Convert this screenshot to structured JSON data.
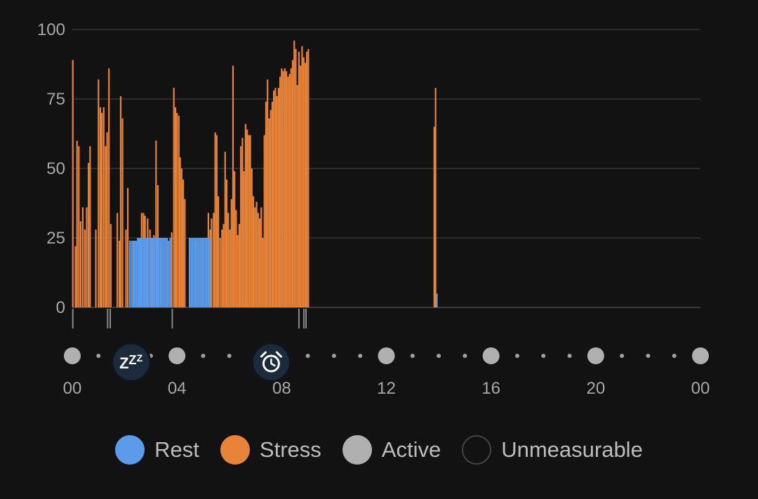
{
  "chart_data": {
    "type": "bar",
    "title": "",
    "xlabel": "",
    "ylabel": "",
    "ylim": [
      0,
      100
    ],
    "xlim_hours": [
      0,
      24
    ],
    "grid": true,
    "y_ticks": [
      "100",
      "75",
      "50",
      "25",
      "0"
    ],
    "x_ticks": [
      "00",
      "04",
      "08",
      "12",
      "16",
      "20",
      "00"
    ],
    "series": [
      {
        "name": "Stress",
        "color": "#E8833A",
        "bars": [
          [
            0.02,
            89
          ],
          [
            0.12,
            22
          ],
          [
            0.18,
            60
          ],
          [
            0.25,
            58
          ],
          [
            0.32,
            31
          ],
          [
            0.4,
            36
          ],
          [
            0.48,
            28
          ],
          [
            0.55,
            36
          ],
          [
            0.62,
            52
          ],
          [
            0.68,
            58
          ],
          [
            0.9,
            28
          ],
          [
            1.0,
            82
          ],
          [
            1.07,
            72
          ],
          [
            1.13,
            70
          ],
          [
            1.2,
            72
          ],
          [
            1.27,
            58
          ],
          [
            1.33,
            63
          ],
          [
            1.4,
            86
          ],
          [
            1.47,
            30
          ],
          [
            1.72,
            34
          ],
          [
            1.8,
            24
          ],
          [
            1.85,
            76
          ],
          [
            1.92,
            68
          ],
          [
            2.05,
            28
          ],
          [
            2.12,
            43
          ],
          [
            2.65,
            34
          ],
          [
            2.72,
            34
          ],
          [
            2.78,
            33
          ],
          [
            2.88,
            32
          ],
          [
            2.97,
            28
          ],
          [
            3.05,
            25
          ],
          [
            3.12,
            26
          ],
          [
            3.2,
            60
          ],
          [
            3.27,
            44
          ],
          [
            3.8,
            27
          ],
          [
            3.88,
            79
          ],
          [
            3.94,
            72
          ],
          [
            4.0,
            70
          ],
          [
            4.07,
            69
          ],
          [
            4.12,
            54
          ],
          [
            4.18,
            50
          ],
          [
            4.24,
            46
          ],
          [
            4.3,
            39
          ],
          [
            5.2,
            34
          ],
          [
            5.27,
            28
          ],
          [
            5.32,
            32
          ],
          [
            5.4,
            34
          ],
          [
            5.46,
            63
          ],
          [
            5.52,
            62
          ],
          [
            5.58,
            40
          ],
          [
            5.65,
            25
          ],
          [
            5.72,
            28
          ],
          [
            5.78,
            30
          ],
          [
            5.84,
            56
          ],
          [
            5.9,
            46
          ],
          [
            5.96,
            34
          ],
          [
            6.02,
            28
          ],
          [
            6.08,
            39
          ],
          [
            6.14,
            87
          ],
          [
            6.2,
            49
          ],
          [
            6.26,
            35
          ],
          [
            6.32,
            26
          ],
          [
            6.38,
            30
          ],
          [
            6.44,
            58
          ],
          [
            6.5,
            61
          ],
          [
            6.56,
            49
          ],
          [
            6.62,
            66
          ],
          [
            6.68,
            64
          ],
          [
            6.74,
            62
          ],
          [
            6.8,
            62
          ],
          [
            6.86,
            50
          ],
          [
            6.92,
            40
          ],
          [
            6.98,
            36
          ],
          [
            7.04,
            38
          ],
          [
            7.1,
            34
          ],
          [
            7.16,
            32
          ],
          [
            7.22,
            36
          ],
          [
            7.28,
            25
          ],
          [
            7.34,
            62
          ],
          [
            7.4,
            74
          ],
          [
            7.46,
            82
          ],
          [
            7.52,
            68
          ],
          [
            7.58,
            71
          ],
          [
            7.64,
            74
          ],
          [
            7.7,
            78
          ],
          [
            7.76,
            79
          ],
          [
            7.82,
            76
          ],
          [
            7.88,
            79
          ],
          [
            7.94,
            83
          ],
          [
            8.0,
            86
          ],
          [
            8.06,
            85
          ],
          [
            8.12,
            86
          ],
          [
            8.18,
            85
          ],
          [
            8.24,
            83
          ],
          [
            8.3,
            84
          ],
          [
            8.36,
            86
          ],
          [
            8.42,
            89
          ],
          [
            8.48,
            96
          ],
          [
            8.54,
            93
          ],
          [
            8.6,
            80
          ],
          [
            8.66,
            92
          ],
          [
            8.72,
            87
          ],
          [
            8.78,
            94
          ],
          [
            8.84,
            90
          ],
          [
            8.9,
            88
          ],
          [
            8.96,
            92
          ],
          [
            9.02,
            93
          ],
          [
            13.83,
            65
          ],
          [
            13.88,
            79
          ]
        ]
      },
      {
        "name": "Rest",
        "color": "#5B9BEA",
        "bars": [
          [
            2.2,
            24
          ],
          [
            2.27,
            24
          ],
          [
            2.33,
            24
          ],
          [
            2.38,
            24
          ],
          [
            2.44,
            24
          ],
          [
            2.5,
            25
          ],
          [
            2.55,
            25
          ],
          [
            2.6,
            25
          ],
          [
            2.66,
            25
          ],
          [
            2.72,
            25
          ],
          [
            2.78,
            25
          ],
          [
            2.84,
            25
          ],
          [
            2.9,
            25
          ],
          [
            2.96,
            25
          ],
          [
            3.02,
            25
          ],
          [
            3.08,
            25
          ],
          [
            3.14,
            25
          ],
          [
            3.2,
            25
          ],
          [
            3.26,
            25
          ],
          [
            3.32,
            25
          ],
          [
            3.38,
            25
          ],
          [
            3.44,
            25
          ],
          [
            3.5,
            25
          ],
          [
            3.56,
            25
          ],
          [
            3.62,
            25
          ],
          [
            3.68,
            24
          ],
          [
            3.74,
            25
          ],
          [
            4.48,
            25
          ],
          [
            4.54,
            25
          ],
          [
            4.6,
            25
          ],
          [
            4.66,
            25
          ],
          [
            4.72,
            25
          ],
          [
            4.78,
            25
          ],
          [
            4.84,
            25
          ],
          [
            4.9,
            25
          ],
          [
            4.96,
            25
          ],
          [
            5.02,
            25
          ],
          [
            5.08,
            25
          ],
          [
            5.14,
            25
          ],
          [
            5.2,
            25
          ],
          [
            5.26,
            25
          ],
          [
            13.93,
            5
          ]
        ]
      }
    ],
    "unmeasurable_marks_hours": [
      0.02,
      1.35,
      1.45,
      3.82,
      8.66,
      8.85,
      8.93
    ],
    "timeline": {
      "sleep_icon_hour": 2.25,
      "alarm_icon_hour": 7.6,
      "sleep_icon": "zzz-sleep-icon",
      "alarm_icon": "alarm-clock-icon"
    }
  },
  "legend": [
    {
      "label": "Rest",
      "color": "#5B9BEA",
      "style": "fill"
    },
    {
      "label": "Stress",
      "color": "#E8833A",
      "style": "fill"
    },
    {
      "label": "Active",
      "color": "#B0B0B0",
      "style": "fill"
    },
    {
      "label": "Unmeasurable",
      "color": "#2A2A2A",
      "style": "outline"
    }
  ]
}
